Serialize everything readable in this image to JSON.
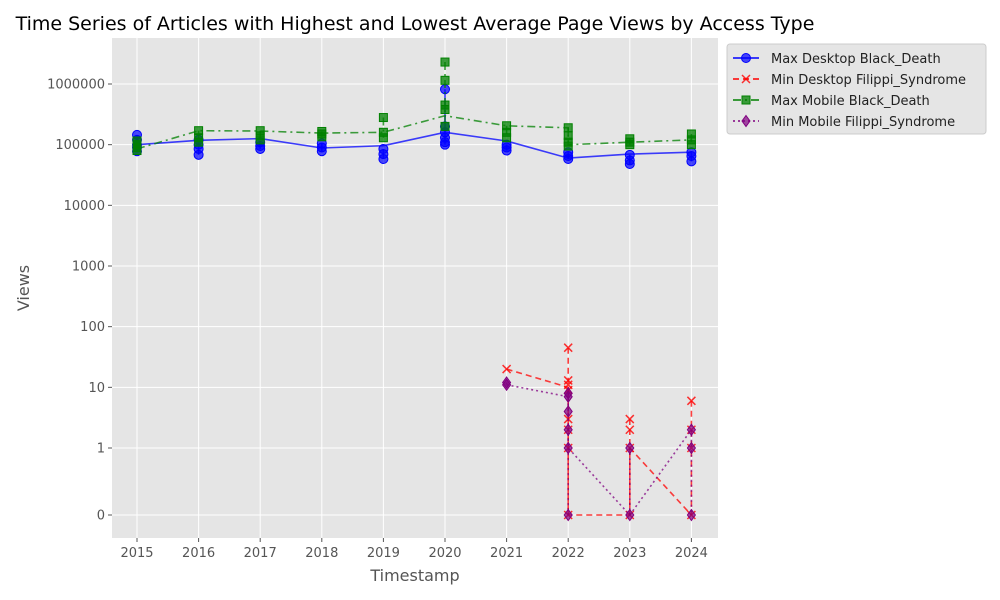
{
  "chart_data": {
    "type": "line",
    "title": "Time Series of Articles with Highest and Lowest Average Page Views by Access Type",
    "xlabel": "Timestamp",
    "ylabel": "Views",
    "y_scale": "symlog",
    "x_ticks": [
      "2015",
      "2016",
      "2017",
      "2018",
      "2019",
      "2020",
      "2021",
      "2022",
      "2023",
      "2024"
    ],
    "y_ticks": [
      "0",
      "1",
      "10",
      "100",
      "1000",
      "10000",
      "100000",
      "1000000"
    ],
    "grid": true,
    "legend_position": "outside-top-right",
    "series": [
      {
        "name": "Max Desktop Black_Death",
        "color": "#0000ff",
        "marker": "circle",
        "line_style": "solid",
        "line_points": [
          [
            2015,
            100000
          ],
          [
            2016,
            118000
          ],
          [
            2017,
            126000
          ],
          [
            2018,
            88000
          ],
          [
            2019,
            96000
          ],
          [
            2020,
            160000
          ],
          [
            2021,
            115000
          ],
          [
            2022,
            60000
          ],
          [
            2023,
            70000
          ],
          [
            2024,
            75000
          ]
        ],
        "points": [
          [
            2015,
            145000
          ],
          [
            2015,
            120000
          ],
          [
            2015,
            100000
          ],
          [
            2015,
            90000
          ],
          [
            2015,
            78000
          ],
          [
            2016,
            120000
          ],
          [
            2016,
            100000
          ],
          [
            2016,
            85000
          ],
          [
            2016,
            68000
          ],
          [
            2017,
            110000
          ],
          [
            2017,
            95000
          ],
          [
            2017,
            85000
          ],
          [
            2018,
            105000
          ],
          [
            2018,
            90000
          ],
          [
            2018,
            78000
          ],
          [
            2019,
            85000
          ],
          [
            2019,
            70000
          ],
          [
            2019,
            58000
          ],
          [
            2020,
            820000
          ],
          [
            2020,
            200000
          ],
          [
            2020,
            160000
          ],
          [
            2020,
            130000
          ],
          [
            2020,
            110000
          ],
          [
            2020,
            100000
          ],
          [
            2021,
            100000
          ],
          [
            2021,
            90000
          ],
          [
            2021,
            80000
          ],
          [
            2022,
            75000
          ],
          [
            2022,
            65000
          ],
          [
            2022,
            58000
          ],
          [
            2023,
            68000
          ],
          [
            2023,
            55000
          ],
          [
            2023,
            48000
          ],
          [
            2024,
            75000
          ],
          [
            2024,
            65000
          ],
          [
            2024,
            53000
          ]
        ]
      },
      {
        "name": "Min Desktop Filippi_Syndrome",
        "color": "#ff0000",
        "marker": "x",
        "line_style": "dashed",
        "line_points": [
          [
            2021,
            20
          ],
          [
            2022,
            10
          ],
          [
            2022,
            0
          ],
          [
            2023,
            0
          ],
          [
            2023,
            1
          ],
          [
            2024,
            0
          ]
        ],
        "points": [
          [
            2021,
            20
          ],
          [
            2022,
            45
          ],
          [
            2022,
            13
          ],
          [
            2022,
            11
          ],
          [
            2022,
            9
          ],
          [
            2022,
            3
          ],
          [
            2022,
            2
          ],
          [
            2022,
            1
          ],
          [
            2022,
            0
          ],
          [
            2023,
            3
          ],
          [
            2023,
            2
          ],
          [
            2023,
            1
          ],
          [
            2023,
            0
          ],
          [
            2024,
            6
          ],
          [
            2024,
            2
          ],
          [
            2024,
            1
          ],
          [
            2024,
            0
          ]
        ]
      },
      {
        "name": "Max Mobile Black_Death",
        "color": "#008000",
        "marker": "square",
        "line_style": "dashdot",
        "line_points": [
          [
            2015,
            85000
          ],
          [
            2016,
            170000
          ],
          [
            2017,
            168000
          ],
          [
            2018,
            155000
          ],
          [
            2019,
            160000
          ],
          [
            2020,
            300000
          ],
          [
            2021,
            205000
          ],
          [
            2022,
            190000
          ],
          [
            2022,
            100000
          ],
          [
            2023,
            110000
          ],
          [
            2024,
            120000
          ]
        ],
        "points": [
          [
            2015,
            115000
          ],
          [
            2015,
            100000
          ],
          [
            2015,
            90000
          ],
          [
            2015,
            80000
          ],
          [
            2016,
            170000
          ],
          [
            2016,
            130000
          ],
          [
            2016,
            110000
          ],
          [
            2017,
            170000
          ],
          [
            2017,
            140000
          ],
          [
            2017,
            120000
          ],
          [
            2018,
            165000
          ],
          [
            2018,
            150000
          ],
          [
            2018,
            135000
          ],
          [
            2019,
            280000
          ],
          [
            2019,
            160000
          ],
          [
            2019,
            130000
          ],
          [
            2020,
            2300000
          ],
          [
            2020,
            1150000
          ],
          [
            2020,
            450000
          ],
          [
            2020,
            380000
          ],
          [
            2020,
            200000
          ],
          [
            2021,
            205000
          ],
          [
            2021,
            160000
          ],
          [
            2021,
            130000
          ],
          [
            2022,
            190000
          ],
          [
            2022,
            140000
          ],
          [
            2022,
            110000
          ],
          [
            2022,
            95000
          ],
          [
            2023,
            125000
          ],
          [
            2023,
            110000
          ],
          [
            2023,
            100000
          ],
          [
            2024,
            150000
          ],
          [
            2024,
            120000
          ],
          [
            2024,
            100000
          ]
        ]
      },
      {
        "name": "Min Mobile Filippi_Syndrome",
        "color": "#800080",
        "marker": "diamond",
        "line_style": "dotted",
        "line_points": [
          [
            2021,
            11
          ],
          [
            2022,
            7
          ],
          [
            2022,
            1
          ],
          [
            2023,
            0
          ],
          [
            2024,
            2
          ]
        ],
        "points": [
          [
            2021,
            12
          ],
          [
            2021,
            11
          ],
          [
            2022,
            8
          ],
          [
            2022,
            7
          ],
          [
            2022,
            4
          ],
          [
            2022,
            2
          ],
          [
            2022,
            1
          ],
          [
            2022,
            0
          ],
          [
            2023,
            1
          ],
          [
            2023,
            0
          ],
          [
            2024,
            2
          ],
          [
            2024,
            1
          ],
          [
            2024,
            0
          ]
        ]
      }
    ]
  }
}
